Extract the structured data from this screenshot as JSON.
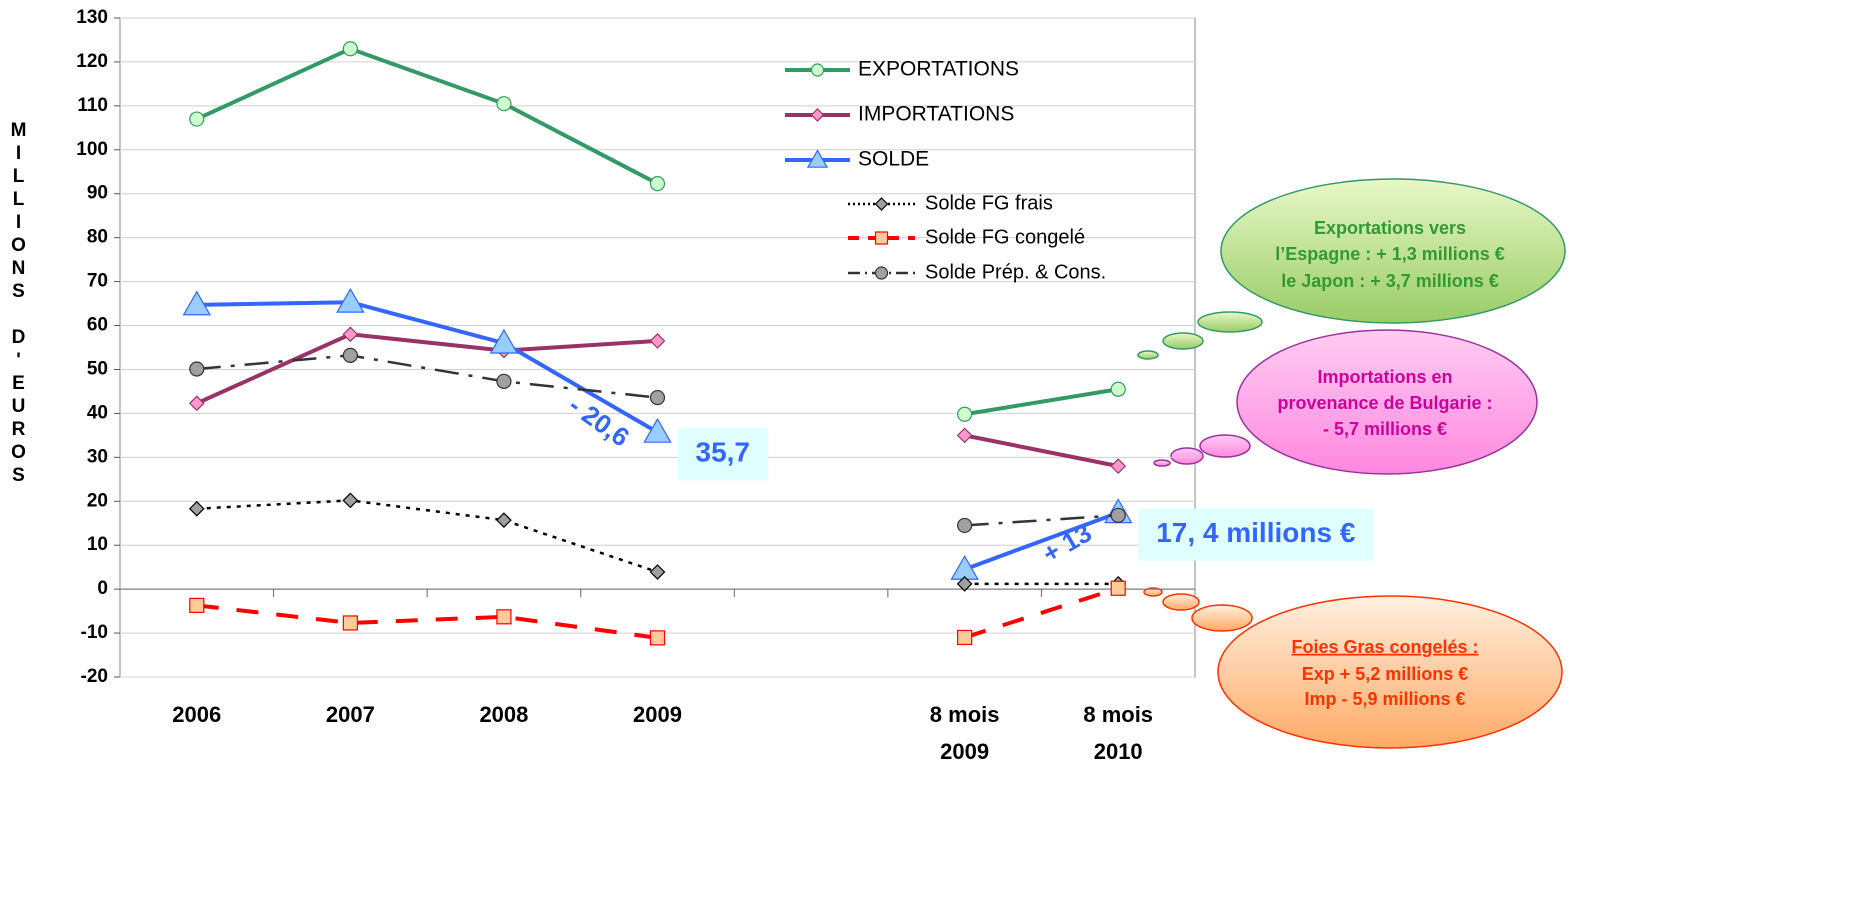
{
  "chart_data": {
    "type": "line",
    "ylabel": "MILLIONS D'EUROS",
    "categories": [
      "2006",
      "2007",
      "2008",
      "2009",
      null,
      "8 mois 2009",
      "8 mois 2010"
    ],
    "ylim": [
      -20,
      130
    ],
    "yticks": [
      -20,
      -10,
      0,
      10,
      20,
      30,
      40,
      50,
      60,
      70,
      80,
      90,
      100,
      110,
      120,
      130
    ],
    "grid": true,
    "legend": "upper right",
    "series": [
      {
        "name": "EXPORTATIONS",
        "color": "#339966",
        "marker": "circle",
        "marker_color": "#ccffcc",
        "line_style": "solid",
        "values": [
          107,
          123,
          110.5,
          92.3,
          null,
          39.8,
          45.5
        ]
      },
      {
        "name": "IMPORTATIONS",
        "color": "#993366",
        "marker": "diamond",
        "marker_color": "#ff99cc",
        "line_style": "solid",
        "values": [
          42.3,
          58,
          54.3,
          56.5,
          null,
          35,
          28
        ]
      },
      {
        "name": "SOLDE",
        "color": "#3366ff",
        "marker": "triangle",
        "marker_color": "#99ccff",
        "line_style": "solid",
        "values": [
          64.7,
          65.3,
          56,
          35.7,
          null,
          4.5,
          17.4
        ],
        "value_labels": [
          null,
          null,
          null,
          "35,7",
          null,
          null,
          "17, 4 millions €"
        ]
      },
      {
        "name": "Solde FG frais",
        "color": "#000000",
        "marker": "diamond",
        "marker_color": "#a0a0a0",
        "line_style": "dotted",
        "values": [
          18.3,
          20.2,
          15.7,
          3.9,
          null,
          1.2,
          1.2
        ]
      },
      {
        "name": "Solde FG congelé",
        "color": "#ff0000",
        "marker": "square",
        "marker_color": "#ffcc99",
        "line_style": "dashed",
        "values": [
          -3.7,
          -7.7,
          -6.3,
          -11.1,
          null,
          -11,
          0.2
        ]
      },
      {
        "name": "Solde Prép. & Cons.",
        "color": "#333333",
        "marker": "circle",
        "marker_color": "#a0a0a0",
        "line_style": "dashdot",
        "values": [
          50.1,
          53.2,
          47.3,
          43.6,
          null,
          14.5,
          16.8
        ]
      }
    ],
    "annotations": [
      {
        "text": "- 20,6"
      },
      {
        "text": "+ 13"
      }
    ],
    "notes": [
      {
        "lines": [
          "Exportations vers",
          "l’Espagne : + 1,3 millions €",
          "le Japon : + 3,7 millions €"
        ]
      },
      {
        "lines": [
          "Importations en",
          "provenance de Bulgarie :",
          "- 5,7 millions €"
        ]
      },
      {
        "lines": [
          "Foies Gras congelés :",
          "Exp + 5,2 millions €",
          "Imp - 5,9 millions €"
        ]
      }
    ]
  }
}
